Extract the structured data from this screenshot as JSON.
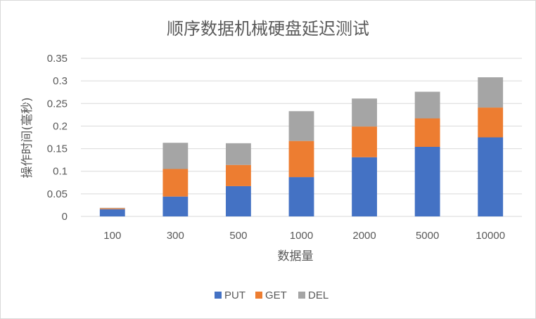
{
  "chart_data": {
    "type": "bar",
    "stacked": true,
    "title": "顺序数据机械硬盘延迟测试",
    "xlabel": "数据量",
    "ylabel": "操作时间(毫秒)",
    "categories": [
      "100",
      "300",
      "500",
      "1000",
      "2000",
      "5000",
      "10000"
    ],
    "series": [
      {
        "name": "PUT",
        "color": "#4472C4",
        "values": [
          0.016,
          0.044,
          0.067,
          0.087,
          0.131,
          0.154,
          0.175
        ]
      },
      {
        "name": "GET",
        "color": "#ED7D31",
        "values": [
          0.002,
          0.061,
          0.047,
          0.08,
          0.068,
          0.063,
          0.066
        ]
      },
      {
        "name": "DEL",
        "color": "#A5A5A5",
        "values": [
          0.001,
          0.058,
          0.048,
          0.066,
          0.062,
          0.059,
          0.067
        ]
      }
    ],
    "yticks": [
      "0",
      "0.05",
      "0.1",
      "0.15",
      "0.2",
      "0.25",
      "0.3",
      "0.35"
    ],
    "ylim": [
      0,
      0.35
    ],
    "grid": true,
    "legend_position": "bottom"
  }
}
